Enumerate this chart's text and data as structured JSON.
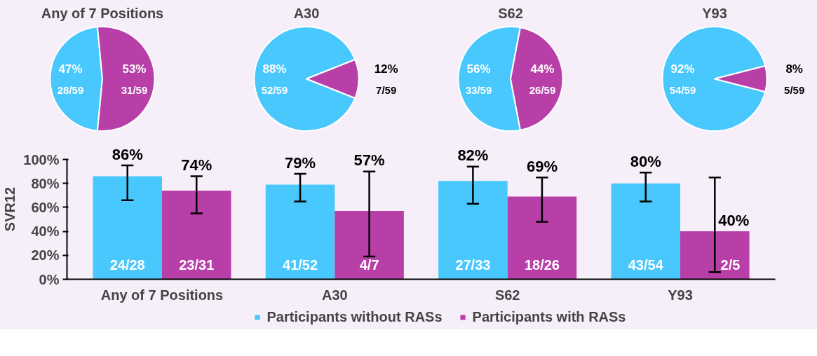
{
  "chart_data": [
    {
      "type": "pie",
      "title": "Any of 7 Positions",
      "categories": [
        null,
        null
      ],
      "values": [
        47,
        53
      ],
      "colors": [
        "#48c8fc",
        "#b83fa8"
      ],
      "value_labels": [
        "47%\n28/59",
        "53%\n31/59"
      ]
    },
    {
      "type": "pie",
      "title": "A30",
      "categories": [
        null,
        null
      ],
      "values": [
        88,
        12
      ],
      "colors": [
        "#48c8fc",
        "#b83fa8"
      ],
      "value_labels": [
        "88%\n52/59",
        "12%\n7/59"
      ]
    },
    {
      "type": "pie",
      "title": "S62",
      "categories": [
        null,
        null
      ],
      "values": [
        56,
        44
      ],
      "colors": [
        "#48c8fc",
        "#b83fa8"
      ],
      "value_labels": [
        "56%\n33/59",
        "44%\n26/59"
      ]
    },
    {
      "type": "pie",
      "title": "Y93",
      "categories": [
        null,
        null
      ],
      "values": [
        92,
        8
      ],
      "colors": [
        "#48c8fc",
        "#b83fa8"
      ],
      "value_labels": [
        "92%\n54/59",
        "8%\n5/59"
      ]
    },
    {
      "type": "bar",
      "ylabel": "SVR12",
      "categories": [
        "Any of 7 Positions",
        "A30",
        "S62",
        "Y93"
      ],
      "series": [
        {
          "name": "Participants without RASs",
          "color": "#48c8fc",
          "values": [
            86,
            79,
            82,
            80
          ],
          "value_labels": [
            "86%",
            "79%",
            "82%",
            "80%"
          ],
          "errors": [
            [
              66,
              95
            ],
            [
              65,
              88
            ],
            [
              63,
              94
            ],
            [
              65,
              89
            ]
          ]
        },
        {
          "name": "Participants with RASs",
          "color": "#b83fa8",
          "values": [
            74,
            57,
            69,
            40
          ],
          "value_labels": [
            "74%",
            "57%",
            "69%",
            "40%"
          ],
          "errors": [
            [
              55,
              86
            ],
            [
              19,
              90
            ],
            [
              48,
              85
            ],
            [
              6,
              85
            ]
          ]
        }
      ],
      "annotations": [
        {
          "text": "24/28",
          "x": "Any of 7 Positions",
          "y": 12
        },
        {
          "text": "23/31",
          "x": "Any of 7 Positions",
          "y": 12
        },
        {
          "text": "41/52",
          "x": "A30",
          "y": 12
        },
        {
          "text": "4/7",
          "x": "A30",
          "y": 12
        },
        {
          "text": "27/33",
          "x": "S62",
          "y": 12
        },
        {
          "text": "18/26",
          "x": "S62",
          "y": 12
        },
        {
          "text": "43/54",
          "x": "Y93",
          "y": 12
        },
        {
          "text": "2/5",
          "x": "Y93",
          "y": 12
        }
      ],
      "ylim": [
        0,
        100
      ],
      "yticks": [
        {
          "value": 0,
          "label": "0%"
        },
        {
          "value": 20,
          "label": "20%"
        },
        {
          "value": 40,
          "label": "40%"
        },
        {
          "value": 60,
          "label": "60%"
        },
        {
          "value": 80,
          "label": "80%"
        },
        {
          "value": 100,
          "label": "100%"
        }
      ],
      "grid": false,
      "legend": "bottom"
    }
  ]
}
